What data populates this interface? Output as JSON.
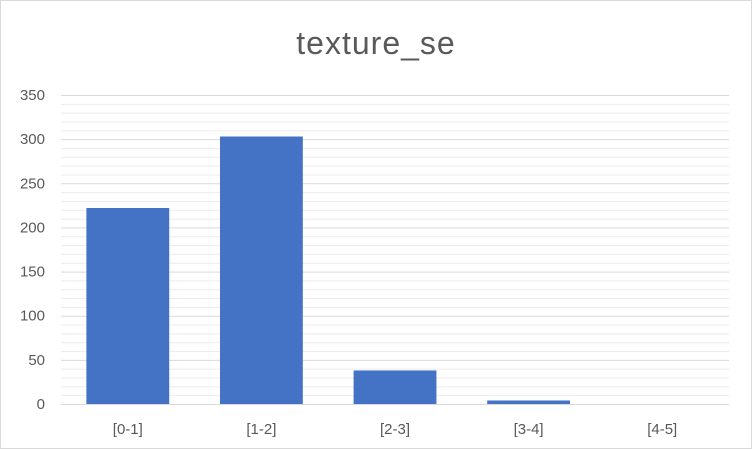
{
  "chart_data": {
    "type": "bar",
    "title": "texture_se",
    "xlabel": "",
    "ylabel": "",
    "categories": [
      "[0-1]",
      "[1-2]",
      "[2-3]",
      "[3-4]",
      "[4-5]"
    ],
    "values": [
      222,
      303,
      38,
      4,
      0
    ],
    "ylim": [
      0,
      350
    ],
    "yticks": [
      0,
      50,
      100,
      150,
      200,
      250,
      300,
      350
    ],
    "grid": true,
    "legend": "none",
    "colors": {
      "bar": "#4472c4",
      "major_grid": "#d9d9d9",
      "minor_grid": "#ececec",
      "text": "#595959"
    }
  }
}
